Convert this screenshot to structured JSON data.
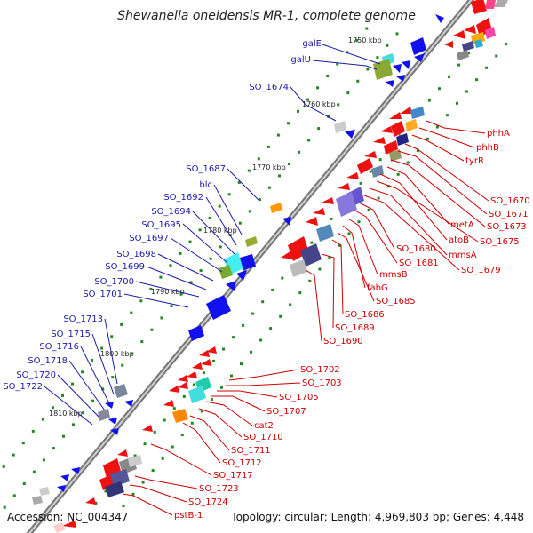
{
  "title": "Shewanella oneidensis MR-1, complete genome",
  "footer": {
    "accession": "Accession: NC_004347",
    "summary": "Topology: circular; Length: 4,969,803 bp; Genes: 4,448"
  },
  "kbp_labels": [
    "1750 kbp",
    "1760 kbp",
    "1770 kbp",
    "1780 kbp",
    "1790 kbp",
    "1800 kbp",
    "1810 kbp"
  ],
  "left_labels": [
    "galE",
    "galU",
    "SO_1674",
    "SO_1687",
    "blc",
    "SO_1692",
    "SO_1694",
    "SO_1695",
    "SO_1697",
    "SO_1698",
    "SO_1699",
    "SO_1700",
    "SO_1701",
    "SO_1713",
    "SO_1715",
    "SO_1716",
    "SO_1718",
    "SO_1720",
    "SO_1722"
  ],
  "right_labels": [
    "phhA",
    "phhB",
    "tyrR",
    "SO_1670",
    "SO_1671",
    "SO_1673",
    "metA",
    "atoB",
    "SO_1675",
    "mmsA",
    "SO_1679",
    "SO_1680",
    "SO_1681",
    "mmsB",
    "fabG",
    "SO_1685",
    "SO_1686",
    "SO_1689",
    "SO_1690",
    "SO_1702",
    "SO_1703",
    "SO_1705",
    "SO_1707",
    "cat2",
    "SO_1710",
    "SO_1711",
    "SO_1712",
    "SO_1717",
    "SO_1723",
    "SO_1724",
    "pstB-1"
  ],
  "colors": {
    "forward_strand": "#ee1111",
    "reverse_strand": "#1111ee",
    "backbone": "#888888",
    "tick": "#228822",
    "label_forward": "#cc0000",
    "label_reverse": "#1a1aa8"
  }
}
